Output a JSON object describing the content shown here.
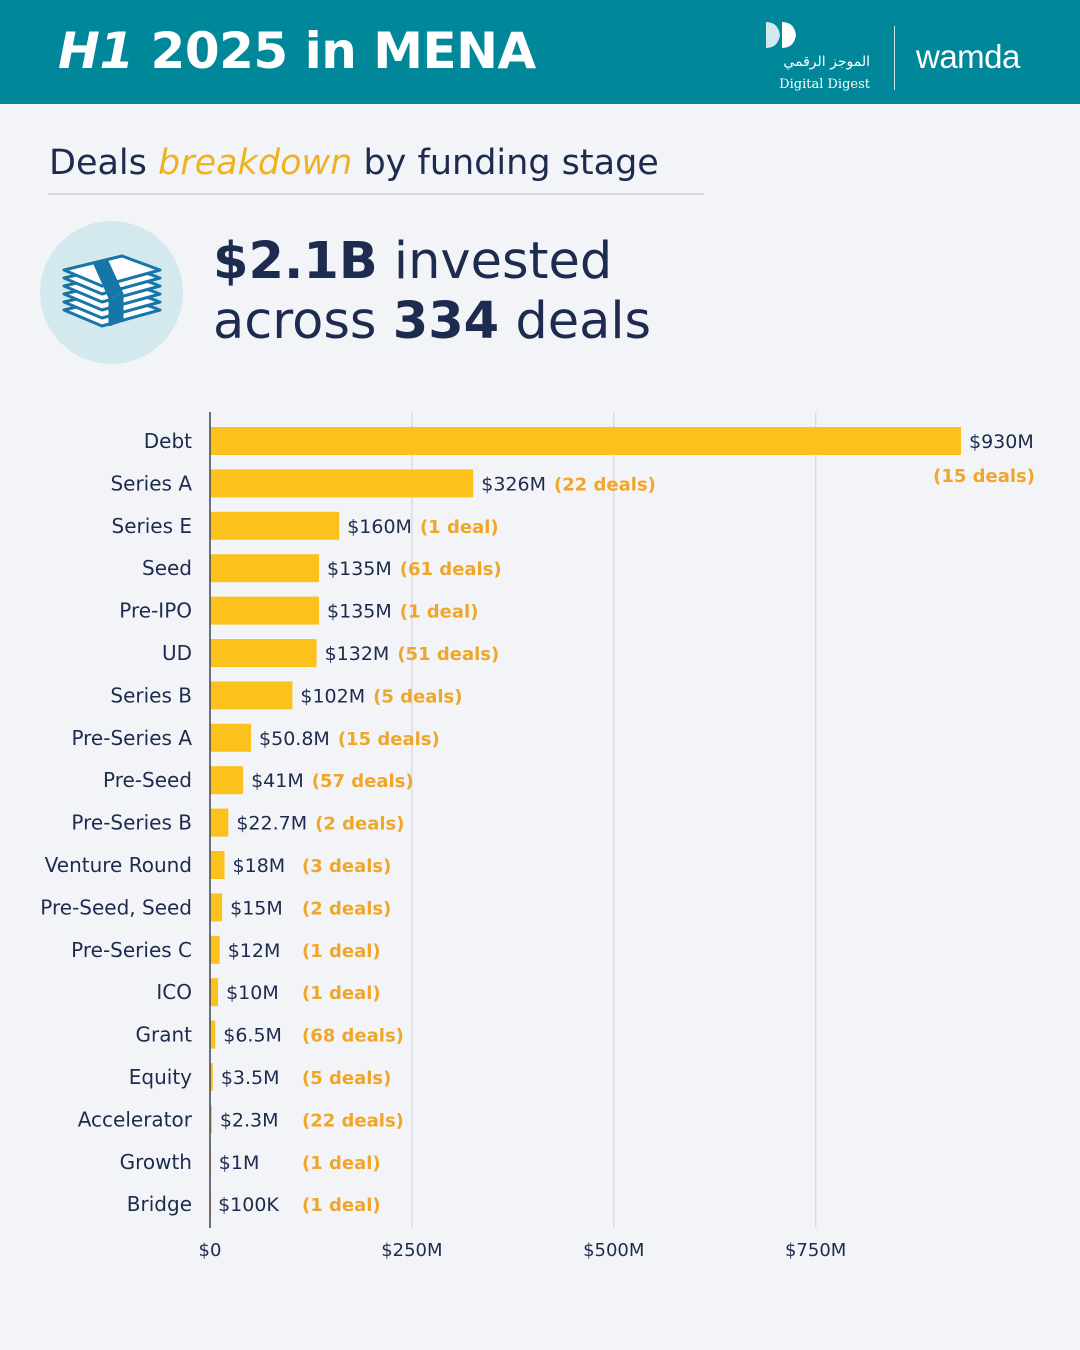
{
  "header": {
    "title_em": "H1",
    "title_rest": " 2025 in MENA",
    "logo_arabic": "الموجز الرقمي",
    "logo_text": "Digital Digest",
    "brand": "wamda"
  },
  "subtitle": {
    "before": "Deals ",
    "em": "breakdown",
    "after": " by funding stage"
  },
  "headline": {
    "amount": "$2.1B",
    "rest1": " invested",
    "line2_before": "across ",
    "deals": "334",
    "line2_after": " deals"
  },
  "icons": {
    "money": "money-stack-icon",
    "logo": "digital-digest-logo-icon"
  },
  "colors": {
    "header_bg": "#00889a",
    "bar": "#fbc21e",
    "deals_text": "#f0a62a",
    "text": "#1d2b4f",
    "background": "#f3f4f7"
  },
  "chart_data": {
    "type": "bar",
    "orientation": "horizontal",
    "categories": [
      "Debt",
      "Series A",
      "Series E",
      "Seed",
      "Pre-IPO",
      "UD",
      "Series B",
      "Pre-Series A",
      "Pre-Seed",
      "Pre-Series B",
      "Venture Round",
      "Pre-Seed, Seed",
      "Pre-Series C",
      "ICO",
      "Grant",
      "Equity",
      "Accelerator",
      "Growth",
      "Bridge"
    ],
    "values": [
      930,
      326,
      160,
      135,
      135,
      132,
      102,
      50.8,
      41,
      22.7,
      18,
      15,
      12,
      10,
      6.5,
      3.5,
      2.3,
      1,
      0.1
    ],
    "value_labels": [
      "$930M",
      "$326M",
      "$160M",
      "$135M",
      "$135M",
      "$132M",
      "$102M",
      "$50.8M",
      "$41M",
      "$22.7M",
      "$18M",
      "$15M",
      "$12M",
      "$10M",
      "$6.5M",
      "$3.5M",
      "$2.3M",
      "$1M",
      "$100K"
    ],
    "deal_labels": [
      "(15 deals)",
      "(22 deals)",
      "(1 deal)",
      "(61 deals)",
      "(1 deal)",
      "(51 deals)",
      "(5 deals)",
      "(15 deals)",
      "(57 deals)",
      "(2 deals)",
      "(3 deals)",
      "(2 deals)",
      "(1 deal)",
      "(1 deal)",
      "(68 deals)",
      "(5 deals)",
      "(22 deals)",
      "(1 deal)",
      "(1 deal)"
    ],
    "x_ticks": [
      0,
      250,
      500,
      750
    ],
    "x_tick_labels": [
      "$0",
      "$250M",
      "$500M",
      "$750M"
    ],
    "xlim": [
      0,
      930
    ],
    "grid": true
  }
}
